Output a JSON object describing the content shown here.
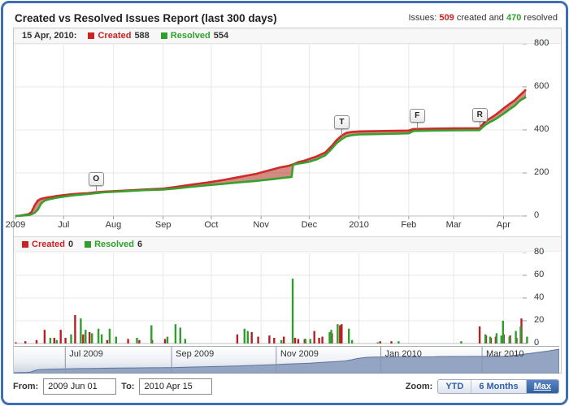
{
  "header": {
    "title": "Created vs Resolved Issues Report (last 300 days)",
    "summary_prefix": "Issues:",
    "created_count": "509",
    "summary_mid": "created and",
    "resolved_count": "470",
    "summary_suffix": "resolved"
  },
  "main_legend": {
    "date": "15 Apr, 2010:",
    "created_label": "Created",
    "created_value": "588",
    "resolved_label": "Resolved",
    "resolved_value": "554"
  },
  "daily_legend": {
    "created_label": "Created",
    "created_value": "0",
    "resolved_label": "Resolved",
    "resolved_value": "6"
  },
  "footer": {
    "from_label": "From:",
    "from_value": "2009 Jun 01",
    "to_label": "To:",
    "to_value": "2010 Apr 15",
    "zoom_label": "Zoom:",
    "buttons": [
      {
        "label": "YTD",
        "active": false
      },
      {
        "label": "6 Months",
        "active": false
      },
      {
        "label": "Max",
        "active": true
      }
    ]
  },
  "colors": {
    "created_line": "#cf2a27",
    "resolved_line": "#36a12e",
    "created_text": "#cc2222",
    "resolved_text": "#2ca12c",
    "band_fill": "rgba(181,63,50,0.6)",
    "grid": "#e7e7e7",
    "accent_blue": "#3e6fb6",
    "navigator_fill": "#94a5c4",
    "navigator_line": "#5f739a"
  },
  "chart_data": [
    {
      "name": "cumulative-created-vs-resolved",
      "type": "area",
      "x_unit": "days since 2009-06-01",
      "x_range": [
        0,
        318
      ],
      "ylim": [
        0,
        800
      ],
      "yticks": [
        0,
        200,
        400,
        600,
        800
      ],
      "xticks": [
        [
          0,
          "2009"
        ],
        [
          30,
          "Jul"
        ],
        [
          61,
          "Aug"
        ],
        [
          92,
          "Sep"
        ],
        [
          122,
          "Oct"
        ],
        [
          153,
          "Nov"
        ],
        [
          183,
          "Dec"
        ],
        [
          214,
          "2010"
        ],
        [
          245,
          "Feb"
        ],
        [
          273,
          "Mar"
        ],
        [
          304,
          "Apr"
        ]
      ],
      "grid": true,
      "legend_position": "top-left",
      "series": [
        {
          "name": "Created",
          "color": "#cf2a27",
          "points": [
            [
              0,
              0
            ],
            [
              3,
              2
            ],
            [
              8,
              8
            ],
            [
              10,
              18
            ],
            [
              12,
              50
            ],
            [
              14,
              72
            ],
            [
              16,
              80
            ],
            [
              20,
              86
            ],
            [
              25,
              92
            ],
            [
              30,
              97
            ],
            [
              35,
              101
            ],
            [
              40,
              104
            ],
            [
              45,
              106
            ],
            [
              50,
              110
            ],
            [
              55,
              113
            ],
            [
              60,
              115
            ],
            [
              70,
              119
            ],
            [
              80,
              123
            ],
            [
              92,
              127
            ],
            [
              100,
              135
            ],
            [
              110,
              146
            ],
            [
              120,
              156
            ],
            [
              130,
              168
            ],
            [
              140,
              182
            ],
            [
              150,
              196
            ],
            [
              155,
              206
            ],
            [
              160,
              216
            ],
            [
              165,
              226
            ],
            [
              170,
              233
            ],
            [
              173,
              240
            ],
            [
              176,
              250
            ],
            [
              180,
              257
            ],
            [
              183,
              265
            ],
            [
              188,
              278
            ],
            [
              193,
              295
            ],
            [
              197,
              325
            ],
            [
              200,
              352
            ],
            [
              203,
              372
            ],
            [
              206,
              386
            ],
            [
              210,
              391
            ],
            [
              214,
              393
            ],
            [
              230,
              395
            ],
            [
              245,
              397
            ],
            [
              248,
              404
            ],
            [
              260,
              406
            ],
            [
              275,
              407
            ],
            [
              289,
              408
            ],
            [
              291,
              425
            ],
            [
              293,
              442
            ],
            [
              296,
              455
            ],
            [
              299,
              470
            ],
            [
              302,
              487
            ],
            [
              305,
              505
            ],
            [
              308,
              522
            ],
            [
              311,
              537
            ],
            [
              313,
              552
            ],
            [
              315,
              566
            ],
            [
              317,
              580
            ],
            [
              318,
              588
            ]
          ]
        },
        {
          "name": "Resolved",
          "color": "#36a12e",
          "points": [
            [
              0,
              0
            ],
            [
              3,
              1
            ],
            [
              8,
              4
            ],
            [
              10,
              8
            ],
            [
              12,
              15
            ],
            [
              14,
              30
            ],
            [
              16,
              58
            ],
            [
              18,
              70
            ],
            [
              20,
              76
            ],
            [
              25,
              84
            ],
            [
              30,
              90
            ],
            [
              35,
              95
            ],
            [
              40,
              99
            ],
            [
              45,
              102
            ],
            [
              50,
              106
            ],
            [
              55,
              110
            ],
            [
              60,
              112
            ],
            [
              70,
              116
            ],
            [
              80,
              120
            ],
            [
              92,
              123
            ],
            [
              100,
              128
            ],
            [
              110,
              136
            ],
            [
              120,
              143
            ],
            [
              130,
              150
            ],
            [
              140,
              157
            ],
            [
              150,
              163
            ],
            [
              155,
              167
            ],
            [
              160,
              171
            ],
            [
              165,
              176
            ],
            [
              170,
              180
            ],
            [
              172,
              181
            ],
            [
              173,
              238
            ],
            [
              176,
              243
            ],
            [
              180,
              248
            ],
            [
              183,
              252
            ],
            [
              188,
              264
            ],
            [
              193,
              282
            ],
            [
              197,
              312
            ],
            [
              200,
              338
            ],
            [
              203,
              356
            ],
            [
              206,
              370
            ],
            [
              210,
              376
            ],
            [
              214,
              379
            ],
            [
              230,
              381
            ],
            [
              245,
              384
            ],
            [
              248,
              395
            ],
            [
              260,
              397
            ],
            [
              275,
              398
            ],
            [
              289,
              399
            ],
            [
              291,
              412
            ],
            [
              293,
              425
            ],
            [
              296,
              438
            ],
            [
              299,
              450
            ],
            [
              302,
              465
            ],
            [
              305,
              480
            ],
            [
              308,
              497
            ],
            [
              311,
              512
            ],
            [
              313,
              527
            ],
            [
              315,
              540
            ],
            [
              317,
              548
            ],
            [
              318,
              554
            ]
          ]
        }
      ],
      "flags": [
        [
          "O",
          50,
          110
        ],
        [
          "T",
          203,
          372
        ],
        [
          "F",
          250,
          404
        ],
        [
          "R",
          289,
          408
        ]
      ]
    },
    {
      "name": "daily-created-vs-resolved",
      "type": "bar",
      "x_unit": "days since 2009-06-01",
      "x_range": [
        0,
        318
      ],
      "ylim": [
        0,
        80
      ],
      "yticks": [
        0,
        20,
        40,
        60,
        80
      ],
      "series": [
        {
          "name": "Created",
          "color": "#b52025",
          "points": [
            [
              1,
              1
            ],
            [
              7,
              2
            ],
            [
              14,
              3
            ],
            [
              19,
              12
            ],
            [
              25,
              5
            ],
            [
              29,
              12
            ],
            [
              32,
              5
            ],
            [
              38,
              25
            ],
            [
              43,
              8
            ],
            [
              47,
              10
            ],
            [
              58,
              3
            ],
            [
              71,
              4
            ],
            [
              78,
              3
            ],
            [
              86,
              3
            ],
            [
              94,
              4
            ],
            [
              139,
              8
            ],
            [
              148,
              10
            ],
            [
              152,
              6
            ],
            [
              159,
              7
            ],
            [
              162,
              5
            ],
            [
              168,
              6
            ],
            [
              175,
              5
            ],
            [
              177,
              4
            ],
            [
              181,
              4
            ],
            [
              187,
              11
            ],
            [
              190,
              5
            ],
            [
              192,
              6
            ],
            [
              198,
              9
            ],
            [
              203,
              16
            ],
            [
              204,
              17
            ],
            [
              228,
              2
            ],
            [
              235,
              2
            ],
            [
              290,
              15
            ],
            [
              294,
              7
            ],
            [
              297,
              5
            ],
            [
              300,
              6
            ],
            [
              305,
              8
            ],
            [
              309,
              7
            ],
            [
              313,
              5
            ],
            [
              316,
              22
            ]
          ]
        },
        {
          "name": "Resolved",
          "color": "#2f9e2f",
          "points": [
            [
              21,
              5
            ],
            [
              25,
              3
            ],
            [
              34,
              8
            ],
            [
              40,
              22
            ],
            [
              43,
              12
            ],
            [
              47,
              9
            ],
            [
              51,
              13
            ],
            [
              53,
              8
            ],
            [
              58,
              13
            ],
            [
              62,
              6
            ],
            [
              75,
              5
            ],
            [
              84,
              16
            ],
            [
              94,
              6
            ],
            [
              99,
              17
            ],
            [
              102,
              14
            ],
            [
              105,
              4
            ],
            [
              142,
              13
            ],
            [
              144,
              11
            ],
            [
              165,
              3
            ],
            [
              172,
              57
            ],
            [
              180,
              4
            ],
            [
              183,
              4
            ],
            [
              195,
              10
            ],
            [
              196,
              12
            ],
            [
              200,
              17
            ],
            [
              207,
              13
            ],
            [
              209,
              3
            ],
            [
              225,
              1
            ],
            [
              238,
              2
            ],
            [
              277,
              2
            ],
            [
              292,
              8
            ],
            [
              295,
              6
            ],
            [
              299,
              9
            ],
            [
              302,
              7
            ],
            [
              303,
              20
            ],
            [
              307,
              6
            ],
            [
              311,
              11
            ],
            [
              314,
              15
            ],
            [
              318,
              6
            ]
          ]
        }
      ]
    },
    {
      "name": "navigator",
      "type": "area",
      "source": "cumulative created issues",
      "labels": [
        [
          30,
          "Jul 2009"
        ],
        [
          92,
          "Sep 2009"
        ],
        [
          153,
          "Nov 2009"
        ],
        [
          214,
          "Jan 2010"
        ],
        [
          273,
          "Mar 2010"
        ]
      ]
    }
  ]
}
